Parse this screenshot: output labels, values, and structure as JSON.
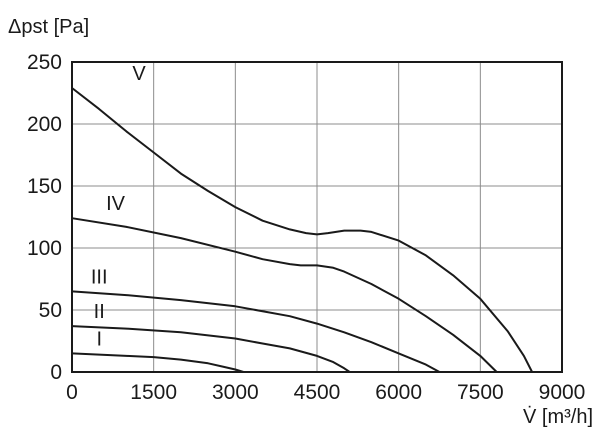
{
  "chart_data": {
    "type": "line",
    "ylabel": "Δpst [Pa]",
    "xlabel": "V̇ [m³/h]",
    "xlim": [
      0,
      9000
    ],
    "ylim": [
      0,
      250
    ],
    "x_ticks": [
      "0",
      "1500",
      "3000",
      "4500",
      "6000",
      "7500",
      "9000"
    ],
    "y_ticks": [
      "0",
      "50",
      "100",
      "150",
      "200",
      "250"
    ],
    "grid": true,
    "series": [
      {
        "name": "I",
        "x": [
          0,
          500,
          1000,
          1500,
          2000,
          2500,
          2800,
          3000,
          3150
        ],
        "y": [
          15,
          14,
          13,
          12,
          10,
          7,
          4,
          2,
          0
        ]
      },
      {
        "name": "II",
        "x": [
          0,
          1000,
          2000,
          3000,
          3500,
          4000,
          4500,
          4800,
          5000,
          5100
        ],
        "y": [
          37,
          35,
          32,
          27,
          23,
          19,
          13,
          8,
          3,
          0
        ]
      },
      {
        "name": "III",
        "x": [
          0,
          1000,
          2000,
          3000,
          4000,
          4500,
          5000,
          5500,
          6000,
          6500,
          6750
        ],
        "y": [
          65,
          62,
          58,
          53,
          45,
          39,
          32,
          24,
          15,
          6,
          0
        ]
      },
      {
        "name": "IV",
        "x": [
          0,
          1000,
          2000,
          3000,
          3500,
          4000,
          4200,
          4500,
          4800,
          5000,
          5500,
          6000,
          6500,
          7000,
          7500,
          7800
        ],
        "y": [
          124,
          117,
          108,
          97,
          91,
          87,
          86,
          86,
          84,
          81,
          71,
          59,
          45,
          30,
          13,
          0
        ]
      },
      {
        "name": "V",
        "x": [
          0,
          500,
          1000,
          1500,
          2000,
          2500,
          3000,
          3500,
          4000,
          4300,
          4500,
          4700,
          5000,
          5300,
          5500,
          6000,
          6500,
          7000,
          7500,
          8000,
          8300,
          8450
        ],
        "y": [
          229,
          212,
          194,
          177,
          160,
          146,
          133,
          122,
          115,
          112,
          111,
          112,
          114,
          114,
          113,
          106,
          94,
          78,
          59,
          33,
          13,
          0
        ]
      }
    ],
    "series_label_anchor": [
      {
        "name": "I",
        "x": 500,
        "y": 15
      },
      {
        "name": "II",
        "x": 500,
        "y": 37
      },
      {
        "name": "III",
        "x": 500,
        "y": 65
      },
      {
        "name": "IV",
        "x": 800,
        "y": 124
      },
      {
        "name": "V",
        "x": 900,
        "y": 229
      }
    ]
  }
}
